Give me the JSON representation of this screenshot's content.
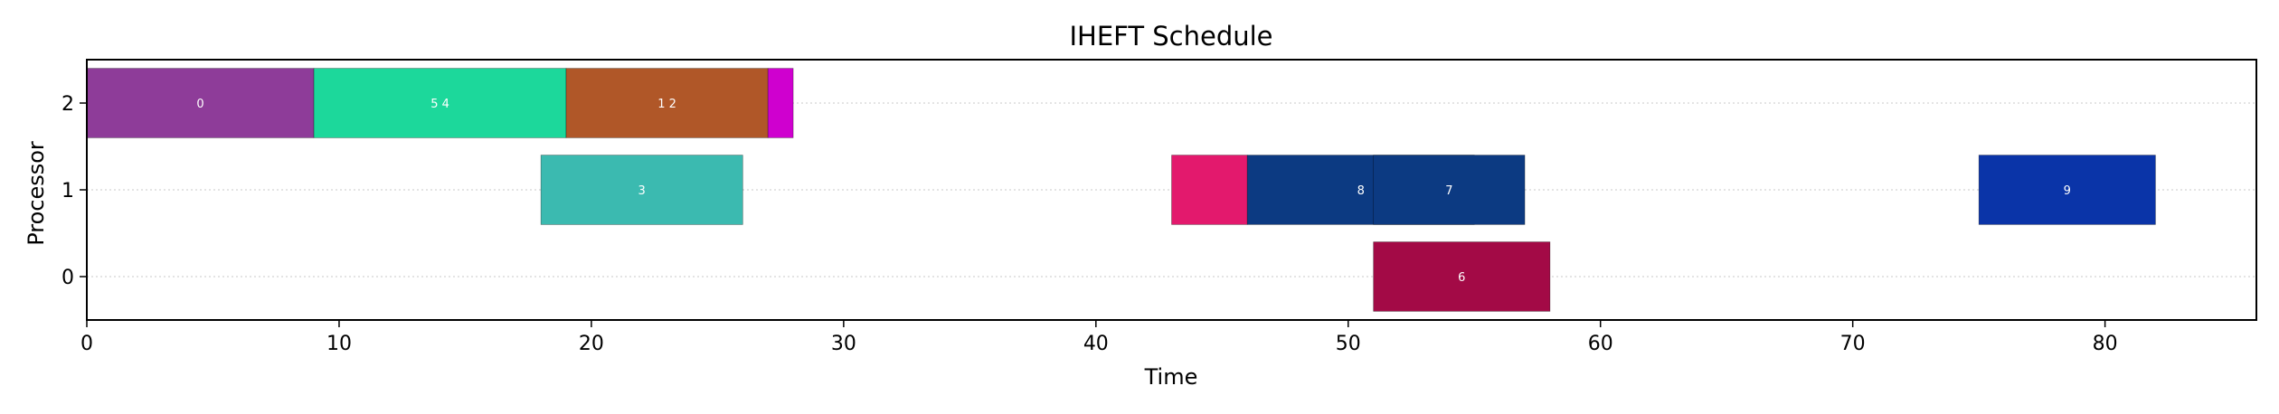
{
  "chart_data": {
    "type": "gantt",
    "title": "IHEFT Schedule",
    "xlabel": "Time",
    "ylabel": "Processor",
    "xlim": [
      0,
      86
    ],
    "ylim": [
      -0.5,
      2.5
    ],
    "x_ticks": [
      0,
      10,
      20,
      30,
      40,
      50,
      60,
      70,
      80
    ],
    "y_ticks": [
      0,
      1,
      2
    ],
    "grid": "horizontal dotted",
    "tasks": [
      {
        "label": "0",
        "processor": 2,
        "start": 0,
        "end": 9,
        "color": "#8e3c99"
      },
      {
        "label": "5 4",
        "processor": 2,
        "start": 9,
        "end": 19,
        "color": "#1cd89b"
      },
      {
        "label": "1 2",
        "processor": 2,
        "start": 19,
        "end": 27,
        "color": "#b05728"
      },
      {
        "label": "",
        "processor": 2,
        "start": 27,
        "end": 28,
        "color": "#cf00cf"
      },
      {
        "label": "3",
        "processor": 1,
        "start": 18,
        "end": 26,
        "color": "#3bbab0"
      },
      {
        "label": "",
        "processor": 1,
        "start": 43,
        "end": 46,
        "color": "#e3196d"
      },
      {
        "label": "8",
        "processor": 1,
        "start": 46,
        "end": 55,
        "color": "#0c3a82"
      },
      {
        "label": "7",
        "processor": 1,
        "start": 51,
        "end": 57,
        "color": "#0c3a82"
      },
      {
        "label": "9",
        "processor": 1,
        "start": 75,
        "end": 82,
        "color": "#0a34a8"
      },
      {
        "label": "6",
        "processor": 0,
        "start": 51,
        "end": 58,
        "color": "#a30a46"
      }
    ]
  }
}
